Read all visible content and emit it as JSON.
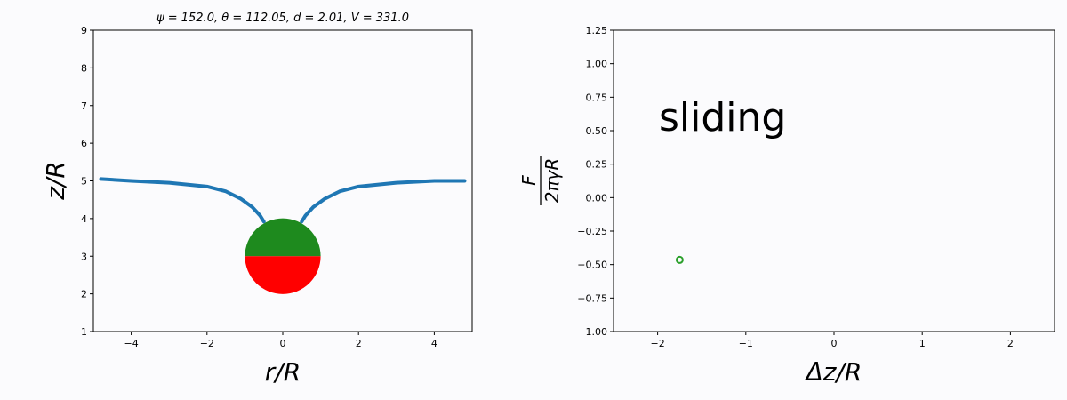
{
  "chart_data": [
    {
      "type": "line",
      "title": "ψ = 152.0, θ = 112.05, d = 2.01, V = 331.0",
      "xlabel": "r/R",
      "ylabel": "z/R",
      "xlim": [
        -5.0,
        5.0
      ],
      "ylim": [
        1,
        9
      ],
      "xticks": [
        -4,
        -2,
        0,
        2,
        4
      ],
      "xtick_labels": [
        "−4",
        "−2",
        "0",
        "2",
        "4"
      ],
      "yticks": [
        1,
        2,
        3,
        4,
        5,
        6,
        7,
        8,
        9
      ],
      "ytick_labels": [
        "1",
        "2",
        "3",
        "4",
        "5",
        "6",
        "7",
        "8",
        "9"
      ],
      "grid": false,
      "series": [
        {
          "role": "interface-left",
          "color": "#1f77b4",
          "x": [
            -4.8,
            -4.0,
            -3.0,
            -2.0,
            -1.5,
            -1.1,
            -0.8,
            -0.6,
            -0.5
          ],
          "y": [
            5.05,
            5.0,
            4.95,
            4.85,
            4.72,
            4.52,
            4.3,
            4.08,
            3.92
          ]
        },
        {
          "role": "interface-right",
          "color": "#1f77b4",
          "x": [
            0.5,
            0.6,
            0.8,
            1.1,
            1.5,
            2.0,
            3.0,
            4.0,
            4.8
          ],
          "y": [
            3.92,
            4.08,
            4.3,
            4.52,
            4.72,
            4.85,
            4.95,
            5.0,
            5.0
          ]
        }
      ],
      "sphere": {
        "center": [
          0,
          3
        ],
        "radius": 1.0,
        "top_color": "#1e8a1e",
        "bottom_color": "#ff0000"
      }
    },
    {
      "type": "scatter",
      "ylabel_numerator": "F",
      "ylabel_denominator": "2πγR",
      "xlabel": "Δz/R",
      "annotation": "sliding",
      "xlim": [
        -2.5,
        2.5
      ],
      "ylim": [
        -1.0,
        1.25
      ],
      "xticks": [
        -2,
        -1,
        0,
        1,
        2
      ],
      "xtick_labels": [
        "−2",
        "−1",
        "0",
        "1",
        "2"
      ],
      "yticks": [
        -1.0,
        -0.75,
        -0.5,
        -0.25,
        0.0,
        0.25,
        0.5,
        0.75,
        1.0,
        1.25
      ],
      "ytick_labels": [
        "−1.00",
        "−0.75",
        "−0.50",
        "−0.25",
        "0.00",
        "0.25",
        "0.50",
        "0.75",
        "1.00",
        "1.25"
      ],
      "grid": false,
      "points": [
        {
          "x": -1.75,
          "y": -0.465,
          "color": "#2ca02c"
        }
      ]
    }
  ]
}
